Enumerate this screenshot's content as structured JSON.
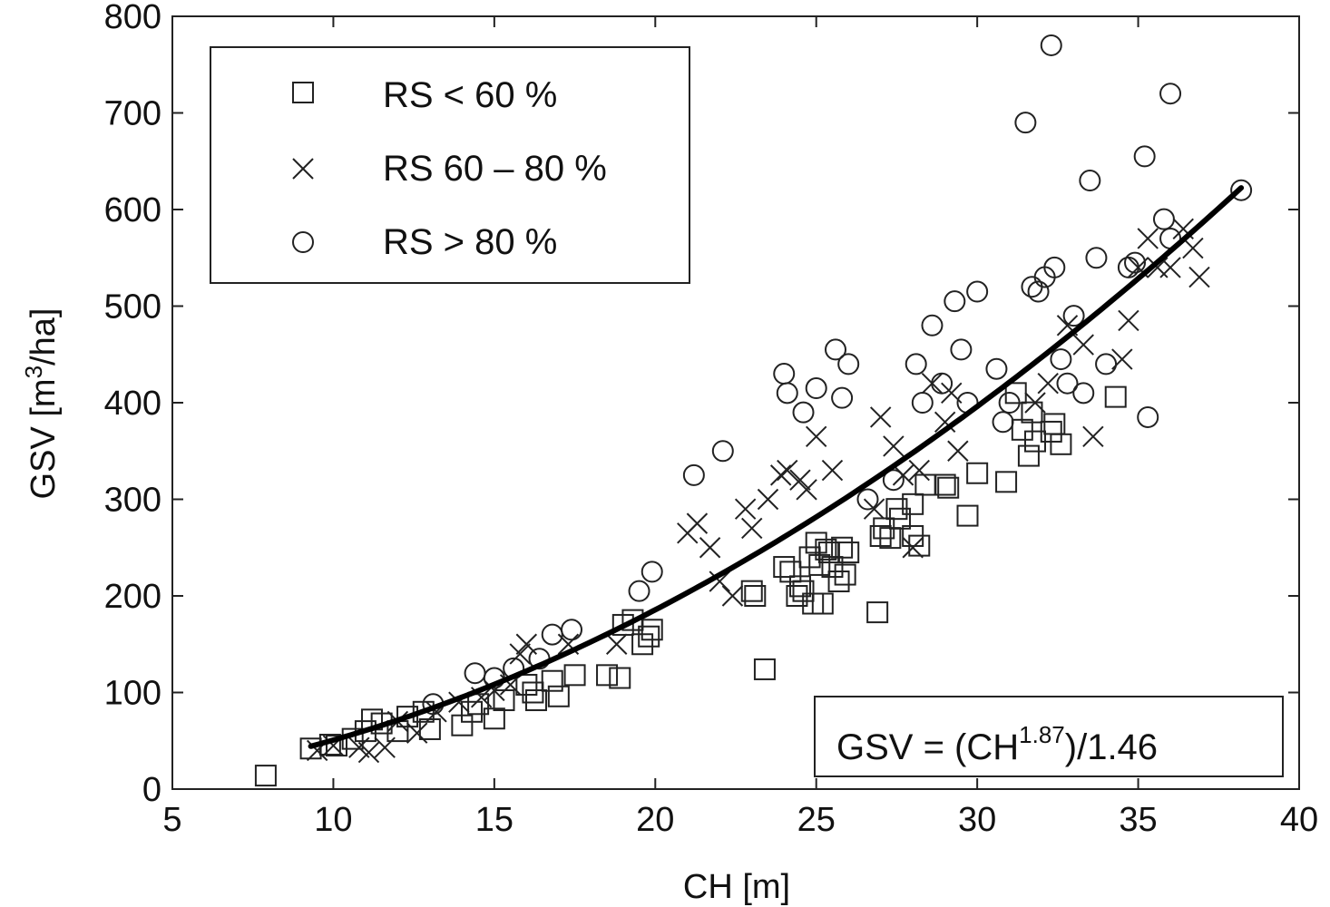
{
  "chart_data": {
    "type": "scatter",
    "xlabel": "CH [m]",
    "ylabel_prefix": "GSV [m",
    "ylabel_sup": "3",
    "ylabel_suffix": "/ha]",
    "xlim": [
      5,
      40
    ],
    "ylim": [
      0,
      800
    ],
    "xticks": [
      5,
      10,
      15,
      20,
      25,
      30,
      35,
      40
    ],
    "yticks": [
      0,
      100,
      200,
      300,
      400,
      500,
      600,
      700,
      800
    ],
    "grid": false,
    "legend_position": "top-left",
    "series": [
      {
        "name": "RS < 60 %",
        "marker": "square",
        "points": [
          [
            7.9,
            14
          ],
          [
            9.3,
            42
          ],
          [
            9.9,
            46
          ],
          [
            10.1,
            45
          ],
          [
            10.6,
            52
          ],
          [
            11,
            60
          ],
          [
            11.2,
            72
          ],
          [
            11.5,
            68
          ],
          [
            12,
            60
          ],
          [
            12.3,
            75
          ],
          [
            12.8,
            80
          ],
          [
            13,
            62
          ],
          [
            14,
            66
          ],
          [
            14.3,
            80
          ],
          [
            14.5,
            88
          ],
          [
            15,
            73
          ],
          [
            15.3,
            92
          ],
          [
            16,
            108
          ],
          [
            16.2,
            100
          ],
          [
            16.3,
            92
          ],
          [
            16.8,
            112
          ],
          [
            17,
            96
          ],
          [
            17.5,
            118
          ],
          [
            18.5,
            118
          ],
          [
            18.9,
            115
          ],
          [
            19,
            170
          ],
          [
            19.3,
            175
          ],
          [
            19.6,
            150
          ],
          [
            19.8,
            158
          ],
          [
            19.9,
            165
          ],
          [
            23,
            205
          ],
          [
            23.1,
            200
          ],
          [
            23.4,
            124
          ],
          [
            24,
            230
          ],
          [
            24.2,
            225
          ],
          [
            24.4,
            200
          ],
          [
            24.5,
            210
          ],
          [
            24.6,
            205
          ],
          [
            24.8,
            240
          ],
          [
            24.9,
            192
          ],
          [
            25,
            255
          ],
          [
            25.1,
            232
          ],
          [
            25.2,
            192
          ],
          [
            25.3,
            248
          ],
          [
            25.4,
            245
          ],
          [
            25.5,
            230
          ],
          [
            25.7,
            215
          ],
          [
            25.8,
            250
          ],
          [
            25.9,
            222
          ],
          [
            26,
            245
          ],
          [
            26.9,
            183
          ],
          [
            27,
            262
          ],
          [
            27.1,
            270
          ],
          [
            27.3,
            260
          ],
          [
            27.5,
            290
          ],
          [
            27.6,
            280
          ],
          [
            28,
            295
          ],
          [
            28,
            262
          ],
          [
            28.2,
            252
          ],
          [
            28.4,
            315
          ],
          [
            29,
            315
          ],
          [
            29.1,
            312
          ],
          [
            29.7,
            283
          ],
          [
            30,
            327
          ],
          [
            30.9,
            318
          ],
          [
            31.2,
            410
          ],
          [
            31.4,
            372
          ],
          [
            31.6,
            345
          ],
          [
            31.7,
            390
          ],
          [
            31.8,
            360
          ],
          [
            32.3,
            370
          ],
          [
            32.4,
            378
          ],
          [
            32.6,
            357
          ],
          [
            34.3,
            406
          ]
        ]
      },
      {
        "name": "RS 60 – 80 %",
        "marker": "x",
        "points": [
          [
            9.5,
            40
          ],
          [
            10,
            45
          ],
          [
            10.8,
            43
          ],
          [
            11.1,
            38
          ],
          [
            11.6,
            43
          ],
          [
            12,
            70
          ],
          [
            12.6,
            58
          ],
          [
            13.2,
            80
          ],
          [
            13.9,
            90
          ],
          [
            14.6,
            95
          ],
          [
            15,
            102
          ],
          [
            15.5,
            108
          ],
          [
            15.8,
            140
          ],
          [
            16,
            150
          ],
          [
            17.3,
            150
          ],
          [
            18.8,
            150
          ],
          [
            21,
            265
          ],
          [
            21.3,
            275
          ],
          [
            21.7,
            250
          ],
          [
            22,
            215
          ],
          [
            22.4,
            200
          ],
          [
            22.8,
            290
          ],
          [
            23,
            270
          ],
          [
            23.5,
            300
          ],
          [
            23.9,
            325
          ],
          [
            24.1,
            330
          ],
          [
            24.5,
            320
          ],
          [
            24.7,
            310
          ],
          [
            25,
            365
          ],
          [
            25.5,
            330
          ],
          [
            26.8,
            290
          ],
          [
            27,
            385
          ],
          [
            27.4,
            355
          ],
          [
            27.7,
            325
          ],
          [
            28,
            250
          ],
          [
            28.2,
            330
          ],
          [
            28.6,
            420
          ],
          [
            29,
            380
          ],
          [
            29.2,
            410
          ],
          [
            29.4,
            350
          ],
          [
            31.8,
            400
          ],
          [
            32.2,
            420
          ],
          [
            32.8,
            480
          ],
          [
            33.3,
            460
          ],
          [
            33.6,
            365
          ],
          [
            34.5,
            445
          ],
          [
            34.7,
            485
          ],
          [
            35,
            540
          ],
          [
            35.3,
            570
          ],
          [
            35.6,
            540
          ],
          [
            36,
            540
          ],
          [
            36.4,
            580
          ],
          [
            36.7,
            560
          ],
          [
            36.9,
            530
          ]
        ]
      },
      {
        "name": "RS > 80 %",
        "marker": "circle",
        "points": [
          [
            13.1,
            88
          ],
          [
            14.4,
            120
          ],
          [
            15,
            115
          ],
          [
            15.6,
            125
          ],
          [
            16.4,
            135
          ],
          [
            16.8,
            160
          ],
          [
            17.4,
            165
          ],
          [
            19.5,
            205
          ],
          [
            19.9,
            225
          ],
          [
            21.2,
            325
          ],
          [
            22.1,
            350
          ],
          [
            24,
            430
          ],
          [
            24.1,
            410
          ],
          [
            24.6,
            390
          ],
          [
            25,
            415
          ],
          [
            25.6,
            455
          ],
          [
            25.8,
            405
          ],
          [
            26,
            440
          ],
          [
            26.6,
            300
          ],
          [
            27.4,
            320
          ],
          [
            28.1,
            440
          ],
          [
            28.3,
            400
          ],
          [
            28.6,
            480
          ],
          [
            28.9,
            420
          ],
          [
            29.3,
            505
          ],
          [
            29.5,
            455
          ],
          [
            29.7,
            400
          ],
          [
            30,
            515
          ],
          [
            30.6,
            435
          ],
          [
            30.8,
            380
          ],
          [
            31,
            400
          ],
          [
            31.5,
            690
          ],
          [
            31.7,
            520
          ],
          [
            31.9,
            515
          ],
          [
            32.1,
            530
          ],
          [
            32.3,
            770
          ],
          [
            32.4,
            540
          ],
          [
            32.6,
            445
          ],
          [
            32.8,
            420
          ],
          [
            33,
            490
          ],
          [
            33.3,
            410
          ],
          [
            33.5,
            630
          ],
          [
            33.7,
            550
          ],
          [
            34,
            440
          ],
          [
            34.7,
            540
          ],
          [
            34.9,
            545
          ],
          [
            35.2,
            655
          ],
          [
            35.3,
            385
          ],
          [
            35.8,
            590
          ],
          [
            36,
            570
          ],
          [
            36,
            720
          ],
          [
            38.2,
            620
          ]
        ]
      }
    ],
    "fit_curve": {
      "label": "GSV = (CH^1.87)/1.46",
      "exponent": 1.87,
      "divisor": 1.46,
      "x_range": [
        9.3,
        38.2
      ]
    },
    "annotation": {
      "prefix": "GSV = (CH",
      "sup": "1.87",
      "suffix": ")/1.46",
      "position": "bottom-right"
    }
  }
}
